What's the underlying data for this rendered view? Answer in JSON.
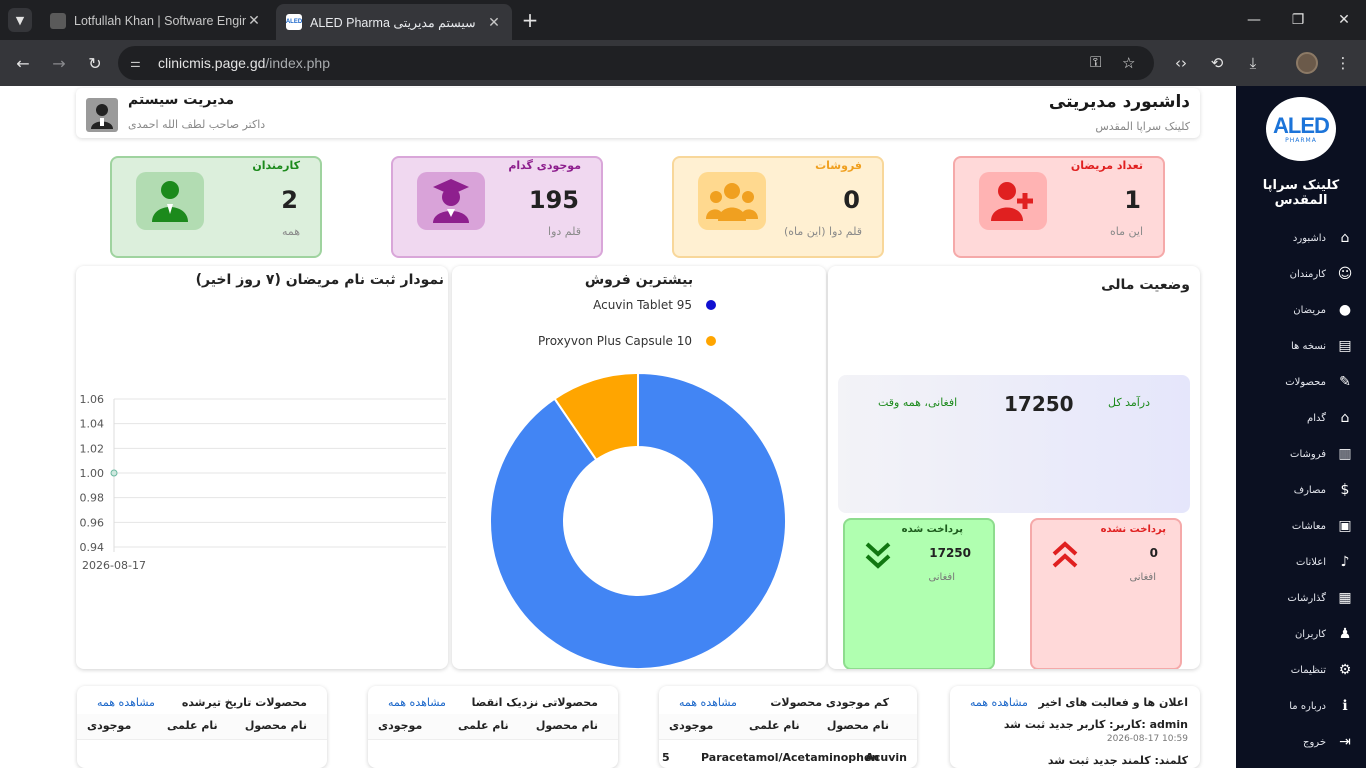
{
  "browser": {
    "tabs": [
      {
        "title": "Lotfullah Khan | Software Engine",
        "close": "✕"
      },
      {
        "title": "ALED Pharma سیستم مدیریتی",
        "close": "✕",
        "favicon": "ALED"
      }
    ],
    "new_tab": "+",
    "url_host": "clinicmis.page.gd",
    "url_path": "/index.php"
  },
  "sidebar": {
    "logo_main": "ALED",
    "logo_sub": "PHARMA",
    "clinic_name": "کلینک سراپا المقدس",
    "items": [
      {
        "label": "داشبورد",
        "icon": "home-icon",
        "glyph": "⌂"
      },
      {
        "label": "کارمندان",
        "icon": "user-outline-icon",
        "glyph": "☺"
      },
      {
        "label": "مریضان",
        "icon": "user-icon",
        "glyph": "●"
      },
      {
        "label": "نسخه ها",
        "icon": "file-icon",
        "glyph": "▤"
      },
      {
        "label": "محصولات",
        "icon": "pen-icon",
        "glyph": "✎"
      },
      {
        "label": "گدام",
        "icon": "bank-icon",
        "glyph": "⌂"
      },
      {
        "label": "فروشات",
        "icon": "chart-bars-icon",
        "glyph": "▥"
      },
      {
        "label": "مصارف",
        "icon": "dollar-icon",
        "glyph": "$"
      },
      {
        "label": "معاشات",
        "icon": "money-icon",
        "glyph": "▣"
      },
      {
        "label": "اعلانات",
        "icon": "bell-icon",
        "glyph": "♪"
      },
      {
        "label": "گذارشات",
        "icon": "report-icon",
        "glyph": "▦"
      },
      {
        "label": "کاربران",
        "icon": "users-icon",
        "glyph": "♟"
      },
      {
        "label": "تنظیمات",
        "icon": "gear-icon",
        "glyph": "⚙"
      },
      {
        "label": "درباره ما",
        "icon": "info-icon",
        "glyph": "ℹ"
      },
      {
        "label": "خروج",
        "icon": "logout-icon",
        "glyph": "⇥"
      }
    ]
  },
  "header": {
    "title": "داشبورد مدیریتی",
    "subtitle": "کلینک سراپا المقدس",
    "user_title": "مدیریت سیستم",
    "user_sub": "داکتر صاحب لطف الله احمدی"
  },
  "stats": [
    {
      "title": "تعداد مریضان",
      "value": "1",
      "sub": "این ماه",
      "color": "#e02020",
      "bg": "#ffd9d9",
      "border": "#f5a9a9",
      "icon_bg": "#ffb3b3",
      "icon": "user-plus-icon"
    },
    {
      "title": "فروشات",
      "value": "0",
      "sub": "قلم دوا (این ماه)",
      "color": "#f0a020",
      "bg": "#fff0d2",
      "border": "#f8d79a",
      "icon_bg": "#ffd98f",
      "icon": "users-group-icon"
    },
    {
      "title": "موجودی گدام",
      "value": "195",
      "sub": "قلم دوا",
      "color": "#8e1f8e",
      "bg": "#f0d8f0",
      "border": "#d9a6d9",
      "icon_bg": "#d9a3d9",
      "icon": "graduate-icon"
    },
    {
      "title": "کارمندان",
      "value": "2",
      "sub": "همه",
      "color": "#1c8a1c",
      "bg": "#dcefdc",
      "border": "#9fd39f",
      "icon_bg": "#b2dcb2",
      "icon": "employee-icon"
    }
  ],
  "finance": {
    "title": "وضعیت مالی",
    "income_label": "درآمد کل",
    "income_value": "17250",
    "income_sub": "افغانی، همه وقت",
    "unpaid_label": "پرداخت نشده",
    "unpaid_value": "0",
    "unpaid_unit": "افغانی",
    "paid_label": "پرداخت شده",
    "paid_value": "17250",
    "paid_unit": "افغانی"
  },
  "lists": [
    {
      "title": "اعلان ها و فعالیت های اخیر",
      "view_all": "مشاهده همه",
      "row1": "کاربر: کاربر جدید ثبت شد: admin",
      "row1_time": "2026-08-17 10:59",
      "row2": "کلمند: کلمند جدید ثبت شد"
    },
    {
      "title": "کم موجودی محصولات",
      "view_all": "مشاهده همه",
      "cols": [
        "نام محصول",
        "نام علمی",
        "موجودی"
      ],
      "rows": [
        [
          "Acuvin",
          "Paracetamol/Acetaminophen",
          "5"
        ]
      ]
    },
    {
      "title": "محصولاتی نزدیک انقضا",
      "view_all": "مشاهده همه",
      "cols": [
        "نام محصول",
        "نام علمی",
        "موجودی"
      ]
    },
    {
      "title": "محصولات تاریخ تیرشده",
      "view_all": "مشاهده همه",
      "cols": [
        "نام محصول",
        "نام علمی",
        "موجودی"
      ]
    }
  ],
  "chart_data": [
    {
      "type": "line",
      "title": "نمودار ثبت نام مریضان (۷ روز اخیر)",
      "x": [
        "2026-08-17"
      ],
      "y": [
        1
      ],
      "ylim": [
        0.94,
        1.06
      ],
      "yticks": [
        "1.06",
        "1.04",
        "1.02",
        "1.00",
        "0.98",
        "0.96",
        "0.94"
      ],
      "grid": true
    },
    {
      "type": "pie",
      "title": "بیشترین فروش",
      "labels": [
        "Acuvin Tablet 95",
        "Proxyvon Plus Capsule 10"
      ],
      "values": [
        95,
        10
      ],
      "colors": [
        "#4285f4",
        "#ffa500"
      ],
      "legend_dot_colors": [
        "#1010d0",
        "#ffa500"
      ],
      "donut": true,
      "legend": "top"
    }
  ]
}
